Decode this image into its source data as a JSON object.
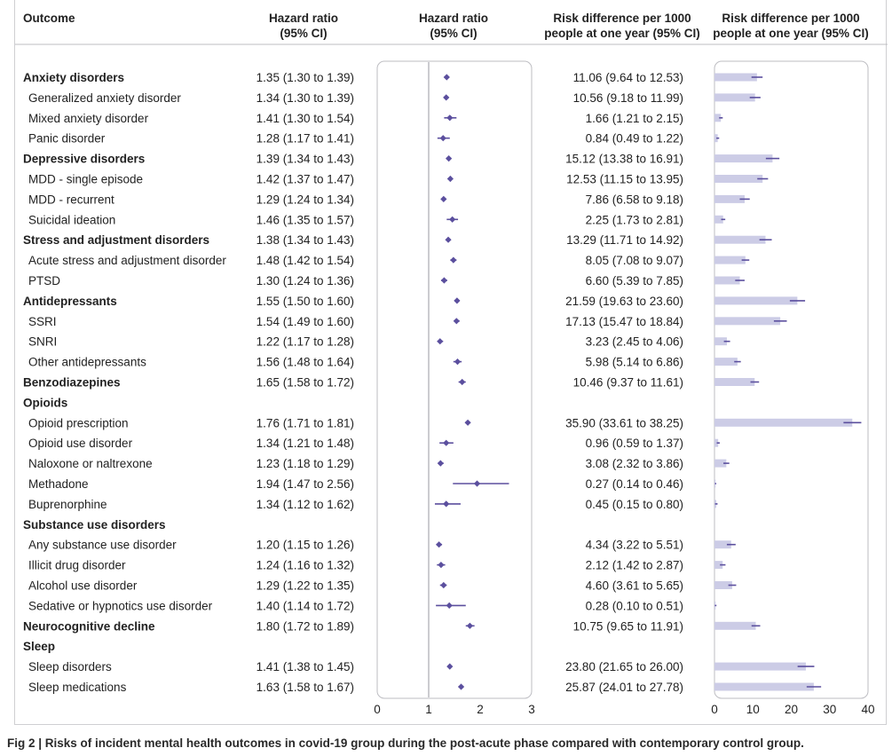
{
  "chart_data": {
    "type": "forest",
    "headers": {
      "outcome": "Outcome",
      "hr_text_line1": "Hazard ratio",
      "hr_text_line2": "(95% CI)",
      "hr_plot_line1": "Hazard ratio",
      "hr_plot_line2": "(95% CI)",
      "rd_text_line1": "Risk difference per 1000",
      "rd_text_line2": "people at one year (95% CI)",
      "rd_plot_line1": "Risk difference per 1000",
      "rd_plot_line2": "people at one year (95% CI)"
    },
    "hr_axis": {
      "ticks": [
        0,
        1,
        2,
        3
      ],
      "tick_labels": [
        "0",
        "1",
        "2",
        "3"
      ],
      "reference_line": 1
    },
    "rd_axis": {
      "min": 0,
      "max": 40,
      "ticks": [
        0,
        10,
        20,
        30,
        40
      ],
      "tick_labels": [
        "0",
        "10",
        "20",
        "30",
        "40"
      ]
    },
    "rows": [
      {
        "outcome": "Anxiety disorders",
        "group": true,
        "hr_text": "1.35 (1.30 to 1.39)",
        "hr": 1.35,
        "hr_lo": 1.3,
        "hr_hi": 1.39,
        "rd_text": "11.06 (9.64 to 12.53)",
        "rd": 11.06,
        "rd_lo": 9.64,
        "rd_hi": 12.53
      },
      {
        "outcome": "Generalized anxiety disorder",
        "group": false,
        "hr_text": "1.34 (1.30 to 1.39)",
        "hr": 1.34,
        "hr_lo": 1.3,
        "hr_hi": 1.39,
        "rd_text": "10.56 (9.18 to 11.99)",
        "rd": 10.56,
        "rd_lo": 9.18,
        "rd_hi": 11.99
      },
      {
        "outcome": "Mixed anxiety disorder",
        "group": false,
        "hr_text": "1.41 (1.30 to 1.54)",
        "hr": 1.41,
        "hr_lo": 1.3,
        "hr_hi": 1.54,
        "rd_text": "1.66 (1.21 to 2.15)",
        "rd": 1.66,
        "rd_lo": 1.21,
        "rd_hi": 2.15
      },
      {
        "outcome": "Panic disorder",
        "group": false,
        "hr_text": "1.28 (1.17 to 1.41)",
        "hr": 1.28,
        "hr_lo": 1.17,
        "hr_hi": 1.41,
        "rd_text": "0.84 (0.49 to 1.22)",
        "rd": 0.84,
        "rd_lo": 0.49,
        "rd_hi": 1.22
      },
      {
        "outcome": "Depressive disorders",
        "group": true,
        "hr_text": "1.39 (1.34 to 1.43)",
        "hr": 1.39,
        "hr_lo": 1.34,
        "hr_hi": 1.43,
        "rd_text": "15.12 (13.38 to 16.91)",
        "rd": 15.12,
        "rd_lo": 13.38,
        "rd_hi": 16.91
      },
      {
        "outcome": "MDD - single episode",
        "group": false,
        "hr_text": "1.42 (1.37 to 1.47)",
        "hr": 1.42,
        "hr_lo": 1.37,
        "hr_hi": 1.47,
        "rd_text": "12.53 (11.15 to 13.95)",
        "rd": 12.53,
        "rd_lo": 11.15,
        "rd_hi": 13.95
      },
      {
        "outcome": "MDD - recurrent",
        "group": false,
        "hr_text": "1.29 (1.24 to 1.34)",
        "hr": 1.29,
        "hr_lo": 1.24,
        "hr_hi": 1.34,
        "rd_text": "7.86 (6.58 to 9.18)",
        "rd": 7.86,
        "rd_lo": 6.58,
        "rd_hi": 9.18
      },
      {
        "outcome": "Suicidal ideation",
        "group": false,
        "hr_text": "1.46 (1.35 to 1.57)",
        "hr": 1.46,
        "hr_lo": 1.35,
        "hr_hi": 1.57,
        "rd_text": "2.25 (1.73 to 2.81)",
        "rd": 2.25,
        "rd_lo": 1.73,
        "rd_hi": 2.81
      },
      {
        "outcome": "Stress and adjustment disorders",
        "group": true,
        "hr_text": "1.38 (1.34 to 1.43)",
        "hr": 1.38,
        "hr_lo": 1.34,
        "hr_hi": 1.43,
        "rd_text": "13.29 (11.71 to 14.92)",
        "rd": 13.29,
        "rd_lo": 11.71,
        "rd_hi": 14.92
      },
      {
        "outcome": "Acute stress and adjustment disorder",
        "group": false,
        "hr_text": "1.48 (1.42 to 1.54)",
        "hr": 1.48,
        "hr_lo": 1.42,
        "hr_hi": 1.54,
        "rd_text": "8.05 (7.08 to 9.07)",
        "rd": 8.05,
        "rd_lo": 7.08,
        "rd_hi": 9.07
      },
      {
        "outcome": "PTSD",
        "group": false,
        "hr_text": "1.30 (1.24 to 1.36)",
        "hr": 1.3,
        "hr_lo": 1.24,
        "hr_hi": 1.36,
        "rd_text": "6.60 (5.39 to 7.85)",
        "rd": 6.6,
        "rd_lo": 5.39,
        "rd_hi": 7.85
      },
      {
        "outcome": "Antidepressants",
        "group": true,
        "hr_text": "1.55 (1.50 to 1.60)",
        "hr": 1.55,
        "hr_lo": 1.5,
        "hr_hi": 1.6,
        "rd_text": "21.59 (19.63 to 23.60)",
        "rd": 21.59,
        "rd_lo": 19.63,
        "rd_hi": 23.6
      },
      {
        "outcome": "SSRI",
        "group": false,
        "hr_text": "1.54 (1.49 to 1.60)",
        "hr": 1.54,
        "hr_lo": 1.49,
        "hr_hi": 1.6,
        "rd_text": "17.13 (15.47 to 18.84)",
        "rd": 17.13,
        "rd_lo": 15.47,
        "rd_hi": 18.84
      },
      {
        "outcome": "SNRI",
        "group": false,
        "hr_text": "1.22 (1.17 to 1.28)",
        "hr": 1.22,
        "hr_lo": 1.17,
        "hr_hi": 1.28,
        "rd_text": "3.23 (2.45 to 4.06)",
        "rd": 3.23,
        "rd_lo": 2.45,
        "rd_hi": 4.06
      },
      {
        "outcome": "Other antidepressants",
        "group": false,
        "hr_text": "1.56 (1.48 to 1.64)",
        "hr": 1.56,
        "hr_lo": 1.48,
        "hr_hi": 1.64,
        "rd_text": "5.98 (5.14 to 6.86)",
        "rd": 5.98,
        "rd_lo": 5.14,
        "rd_hi": 6.86
      },
      {
        "outcome": "Benzodiazepines",
        "group": true,
        "hr_text": "1.65 (1.58 to 1.72)",
        "hr": 1.65,
        "hr_lo": 1.58,
        "hr_hi": 1.72,
        "rd_text": "10.46 (9.37 to 11.61)",
        "rd": 10.46,
        "rd_lo": 9.37,
        "rd_hi": 11.61
      },
      {
        "outcome": "Opioids",
        "group": true,
        "hr_text": "",
        "hr": null,
        "hr_lo": null,
        "hr_hi": null,
        "rd_text": "",
        "rd": null,
        "rd_lo": null,
        "rd_hi": null
      },
      {
        "outcome": "Opioid prescription",
        "group": false,
        "hr_text": "1.76 (1.71 to 1.81)",
        "hr": 1.76,
        "hr_lo": 1.71,
        "hr_hi": 1.81,
        "rd_text": "35.90 (33.61 to 38.25)",
        "rd": 35.9,
        "rd_lo": 33.61,
        "rd_hi": 38.25
      },
      {
        "outcome": "Opioid use disorder",
        "group": false,
        "hr_text": "1.34 (1.21 to 1.48)",
        "hr": 1.34,
        "hr_lo": 1.21,
        "hr_hi": 1.48,
        "rd_text": "0.96 (0.59 to 1.37)",
        "rd": 0.96,
        "rd_lo": 0.59,
        "rd_hi": 1.37
      },
      {
        "outcome": "Naloxone or naltrexone",
        "group": false,
        "hr_text": "1.23 (1.18 to 1.29)",
        "hr": 1.23,
        "hr_lo": 1.18,
        "hr_hi": 1.29,
        "rd_text": "3.08 (2.32 to 3.86)",
        "rd": 3.08,
        "rd_lo": 2.32,
        "rd_hi": 3.86
      },
      {
        "outcome": "Methadone",
        "group": false,
        "hr_text": "1.94 (1.47 to 2.56)",
        "hr": 1.94,
        "hr_lo": 1.47,
        "hr_hi": 2.56,
        "rd_text": "0.27 (0.14 to 0.46)",
        "rd": 0.27,
        "rd_lo": 0.14,
        "rd_hi": 0.46
      },
      {
        "outcome": "Buprenorphine",
        "group": false,
        "hr_text": "1.34 (1.12 to 1.62)",
        "hr": 1.34,
        "hr_lo": 1.12,
        "hr_hi": 1.62,
        "rd_text": "0.45 (0.15 to 0.80)",
        "rd": 0.45,
        "rd_lo": 0.15,
        "rd_hi": 0.8
      },
      {
        "outcome": "Substance use disorders",
        "group": true,
        "hr_text": "",
        "hr": null,
        "hr_lo": null,
        "hr_hi": null,
        "rd_text": "",
        "rd": null,
        "rd_lo": null,
        "rd_hi": null
      },
      {
        "outcome": "Any substance use disorder",
        "group": false,
        "hr_text": "1.20 (1.15 to 1.26)",
        "hr": 1.2,
        "hr_lo": 1.15,
        "hr_hi": 1.26,
        "rd_text": "4.34 (3.22 to 5.51)",
        "rd": 4.34,
        "rd_lo": 3.22,
        "rd_hi": 5.51
      },
      {
        "outcome": "Illicit drug disorder",
        "group": false,
        "hr_text": "1.24 (1.16 to 1.32)",
        "hr": 1.24,
        "hr_lo": 1.16,
        "hr_hi": 1.32,
        "rd_text": "2.12 (1.42 to 2.87)",
        "rd": 2.12,
        "rd_lo": 1.42,
        "rd_hi": 2.87
      },
      {
        "outcome": "Alcohol use disorder",
        "group": false,
        "hr_text": "1.29 (1.22 to 1.35)",
        "hr": 1.29,
        "hr_lo": 1.22,
        "hr_hi": 1.35,
        "rd_text": "4.60 (3.61 to 5.65)",
        "rd": 4.6,
        "rd_lo": 3.61,
        "rd_hi": 5.65
      },
      {
        "outcome": "Sedative or hypnotics use disorder",
        "group": false,
        "hr_text": "1.40 (1.14 to 1.72)",
        "hr": 1.4,
        "hr_lo": 1.14,
        "hr_hi": 1.72,
        "rd_text": "0.28 (0.10 to 0.51)",
        "rd": 0.28,
        "rd_lo": 0.1,
        "rd_hi": 0.51
      },
      {
        "outcome": "Neurocognitive decline",
        "group": true,
        "hr_text": "1.80 (1.72 to 1.89)",
        "hr": 1.8,
        "hr_lo": 1.72,
        "hr_hi": 1.89,
        "rd_text": "10.75 (9.65 to 11.91)",
        "rd": 10.75,
        "rd_lo": 9.65,
        "rd_hi": 11.91
      },
      {
        "outcome": "Sleep",
        "group": true,
        "hr_text": "",
        "hr": null,
        "hr_lo": null,
        "hr_hi": null,
        "rd_text": "",
        "rd": null,
        "rd_lo": null,
        "rd_hi": null
      },
      {
        "outcome": "Sleep disorders",
        "group": false,
        "hr_text": "1.41 (1.38 to 1.45)",
        "hr": 1.41,
        "hr_lo": 1.38,
        "hr_hi": 1.45,
        "rd_text": "23.80 (21.65 to 26.00)",
        "rd": 23.8,
        "rd_lo": 21.65,
        "rd_hi": 26.0
      },
      {
        "outcome": "Sleep medications",
        "group": false,
        "hr_text": "1.63 (1.58 to 1.67)",
        "hr": 1.63,
        "hr_lo": 1.58,
        "hr_hi": 1.67,
        "rd_text": "25.87 (24.01 to 27.78)",
        "rd": 25.87,
        "rd_lo": 24.01,
        "rd_hi": 27.78
      }
    ],
    "colors": {
      "point": "#5b4f9e",
      "bar": "#cccce6",
      "text": "#222222",
      "frame": "#bdbdc2",
      "reference_line": "#9a9aa0"
    }
  },
  "caption": {
    "label": "Fig 2 | ",
    "text": "Risks of incident mental health outcomes in covid-19 group during the post-acute phase compared with contemporary control group."
  }
}
